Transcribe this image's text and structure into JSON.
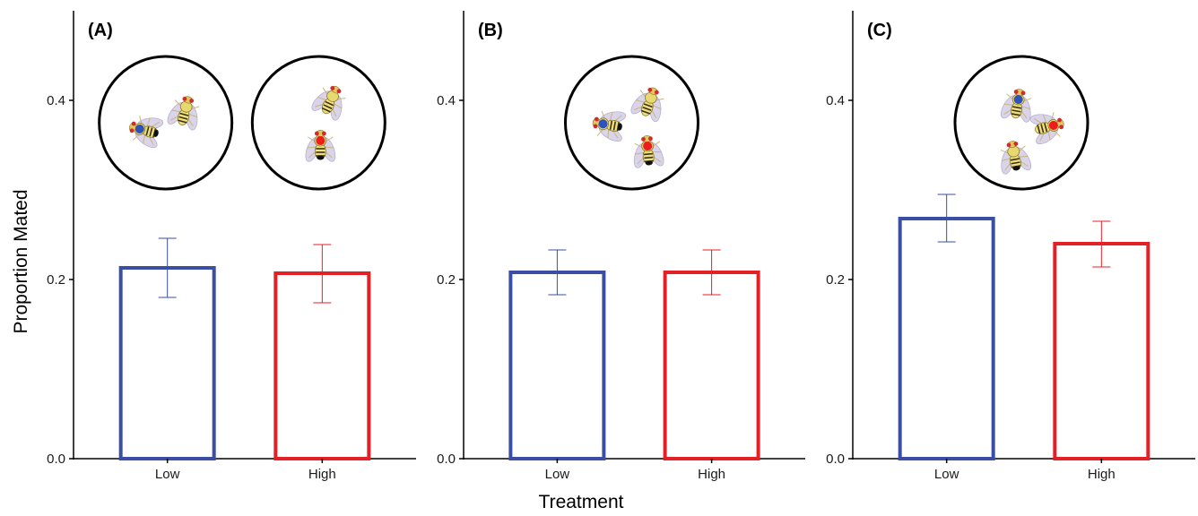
{
  "chart_data": {
    "type": "bar",
    "ylabel": "Proportion Mated",
    "xlabel": "Treatment",
    "ylim": [
      0,
      0.5
    ],
    "yticks": [
      0.0,
      0.2,
      0.4
    ],
    "ytick_labels": [
      "0.0",
      "0.2",
      "0.4"
    ],
    "categories": [
      "Low",
      "High"
    ],
    "bar_style": "outline",
    "grid": false,
    "colors": {
      "Low": "#3a4fa3",
      "High": "#e41f26"
    },
    "panels": [
      {
        "label": "(A)",
        "values": [
          0.213,
          0.207
        ],
        "error_low": [
          0.18,
          0.174
        ],
        "error_high": [
          0.246,
          0.239
        ],
        "insets": [
          {
            "flies": [
              {
                "dot": "blue",
                "mark": "black"
              },
              {
                "dot": "none",
                "mark": "none"
              }
            ]
          },
          {
            "flies": [
              {
                "dot": "none",
                "mark": "none"
              },
              {
                "dot": "red",
                "mark": "black"
              }
            ]
          }
        ]
      },
      {
        "label": "(B)",
        "values": [
          0.208,
          0.208
        ],
        "error_low": [
          0.183,
          0.183
        ],
        "error_high": [
          0.233,
          0.233
        ],
        "insets": [
          {
            "flies": [
              {
                "dot": "blue",
                "mark": "black"
              },
              {
                "dot": "none",
                "mark": "none"
              },
              {
                "dot": "red",
                "mark": "black"
              }
            ]
          }
        ]
      },
      {
        "label": "(C)",
        "values": [
          0.268,
          0.24
        ],
        "error_low": [
          0.242,
          0.214
        ],
        "error_high": [
          0.295,
          0.265
        ],
        "insets": [
          {
            "flies": [
              {
                "dot": "blue",
                "mark": "none"
              },
              {
                "dot": "red",
                "mark": "none"
              },
              {
                "dot": "none",
                "mark": "black"
              }
            ]
          }
        ]
      }
    ]
  }
}
